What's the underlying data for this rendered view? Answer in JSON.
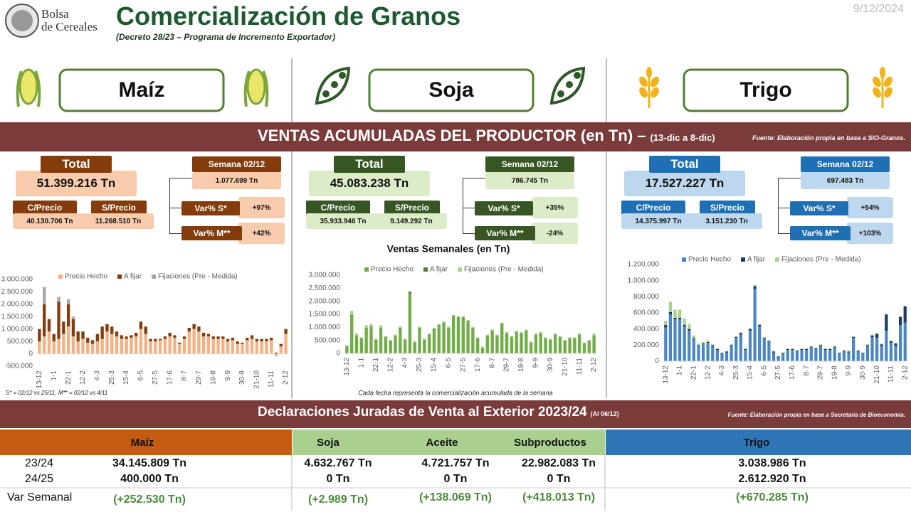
{
  "header": {
    "org_line1": "Bolsa",
    "org_line2": "de Cereales",
    "title": "Comercialización de Granos",
    "subtitle": "(Decreto 28/23 – Programa de Incremento Exportador)",
    "date": "9/12/2024"
  },
  "products": [
    "Maíz",
    "Soja",
    "Trigo"
  ],
  "ventas": {
    "title": "VENTAS ACUMULADAS DEL PRODUCTOR (en Tn) –",
    "period": "(13-dic a 8-dic)",
    "source": "Fuente: Elaboración propia en base a SIO-Granos.",
    "footnote": "S* = 02/12 vs 25/11, M** = 02/12 vs 4/11",
    "panels": [
      {
        "total_label": "Total",
        "total": "51.399.216 Tn",
        "cprecio_label": "C/Precio",
        "cprecio": "40.130.706 Tn",
        "sprecio_label": "S/Precio",
        "sprecio": "11.268.510 Tn",
        "semana_label": "Semana 02/12",
        "semana": "1.077.699 Tn",
        "var_s_label": "Var% S*",
        "var_s": "+97%",
        "var_m_label": "Var% M**",
        "var_m": "+42%"
      },
      {
        "total_label": "Total",
        "total": "45.083.238 Tn",
        "cprecio_label": "C/Precio",
        "cprecio": "35.933.946 Tn",
        "sprecio_label": "S/Precio",
        "sprecio": "9.149.292 Tn",
        "semana_label": "Semana 02/12",
        "semana": "786.745 Tn",
        "var_s_label": "Var% S*",
        "var_s": "+35%",
        "var_m_label": "Var% M**",
        "var_m": "-24%"
      },
      {
        "total_label": "Total",
        "total": "17.527.227 Tn",
        "cprecio_label": "C/Precio",
        "cprecio": "14.375.997 Tn",
        "sprecio_label": "S/Precio",
        "sprecio": "3.151.230 Tn",
        "semana_label": "Semana 02/12",
        "semana": "697.483 Tn",
        "var_s_label": "Var% S*",
        "var_s": "+54%",
        "var_m_label": "Var% M**",
        "var_m": "+103%"
      }
    ]
  },
  "chart_data": [
    {
      "type": "bar",
      "stacked": true,
      "categories": [
        "13-12",
        null,
        null,
        "1-1",
        null,
        null,
        "22-1",
        null,
        null,
        "12-2",
        null,
        null,
        "4-3",
        null,
        null,
        "25-3",
        null,
        null,
        "15-4",
        null,
        null,
        "6-5",
        null,
        null,
        "27-5",
        null,
        null,
        "17-6",
        null,
        null,
        "8-7",
        null,
        null,
        "29-7",
        null,
        null,
        "19-8",
        null,
        null,
        "9-9",
        null,
        null,
        "30-9",
        null,
        null,
        "21-10",
        null,
        null,
        "11-11",
        null,
        null,
        "2-12"
      ],
      "series": [
        {
          "name": "Precio Hecho",
          "color": "#f4b183",
          "values": [
            500000,
            700000,
            900000,
            500000,
            600000,
            800000,
            1100000,
            700000,
            500000,
            600000,
            450000,
            400000,
            500000,
            600000,
            900000,
            800000,
            700000,
            600000,
            600000,
            650000,
            700000,
            1000000,
            800000,
            500000,
            500000,
            550000,
            600000,
            700000,
            650000,
            400000,
            600000,
            900000,
            1000000,
            900000,
            700000,
            700000,
            600000,
            600000,
            600000,
            500000,
            550000,
            400000,
            400000,
            550000,
            600000,
            500000,
            500000,
            500000,
            550000,
            -100000,
            300000,
            800000
          ]
        },
        {
          "name": "A fijar",
          "color": "#843c0c",
          "values": [
            500000,
            1300000,
            500000,
            300000,
            1500000,
            500000,
            900000,
            700000,
            400000,
            300000,
            200000,
            150000,
            300000,
            500000,
            300000,
            300000,
            200000,
            150000,
            100000,
            100000,
            150000,
            300000,
            300000,
            100000,
            100000,
            50000,
            100000,
            150000,
            100000,
            50000,
            100000,
            150000,
            200000,
            200000,
            150000,
            100000,
            100000,
            100000,
            100000,
            100000,
            100000,
            100000,
            50000,
            100000,
            150000,
            100000,
            100000,
            100000,
            100000,
            50000,
            100000,
            200000
          ]
        },
        {
          "name": "Fijaciones (Pre - Medida)",
          "color": "#a6a6a6",
          "values": [
            0,
            700000,
            0,
            0,
            200000,
            0,
            200000,
            100000,
            0,
            0,
            0,
            0,
            0,
            0,
            0,
            0,
            0,
            0,
            0,
            0,
            0,
            0,
            0,
            0,
            0,
            0,
            0,
            0,
            0,
            0,
            0,
            0,
            0,
            0,
            0,
            0,
            0,
            0,
            0,
            0,
            0,
            0,
            0,
            0,
            0,
            0,
            0,
            0,
            0,
            0,
            0,
            0
          ]
        }
      ],
      "ylim": [
        -500000,
        3000000
      ],
      "yticks": [
        {
          "value": -500000,
          "label": "-500.000"
        },
        0,
        {
          "value": 500000,
          "label": "500.000"
        },
        {
          "value": 1000000,
          "label": "1.000.000"
        },
        {
          "value": 1500000,
          "label": "1.500.000"
        },
        {
          "value": 2000000,
          "label": "2.000.000"
        },
        {
          "value": 2500000,
          "label": "2.500.000"
        },
        {
          "value": 3000000,
          "label": "3.000.000"
        }
      ]
    },
    {
      "type": "bar",
      "stacked": true,
      "title": "Ventas Semanales (en Tn)",
      "note": "Cada fecha representa la comercialización acumulada de la semana",
      "categories": [
        "13-12",
        null,
        null,
        "1-1",
        null,
        null,
        "22-1",
        null,
        null,
        "12-2",
        null,
        null,
        "4-3",
        null,
        null,
        "25-3",
        null,
        null,
        "15-4",
        null,
        null,
        "6-5",
        null,
        null,
        "27-5",
        null,
        null,
        "17-6",
        null,
        null,
        "8-7",
        null,
        null,
        "29-7",
        null,
        null,
        "19-8",
        null,
        null,
        "9-9",
        null,
        null,
        "30-9",
        null,
        null,
        "21-10",
        null,
        null,
        "11-11",
        null,
        null,
        "2-12"
      ],
      "series": [
        {
          "name": "Precio Hecho",
          "color": "#70ad47",
          "values": [
            250000,
            1450000,
            650000,
            550000,
            950000,
            1000000,
            500000,
            950000,
            600000,
            450000,
            650000,
            950000,
            500000,
            2300000,
            400000,
            950000,
            500000,
            700000,
            900000,
            1050000,
            1150000,
            950000,
            1400000,
            1350000,
            1350000,
            1200000,
            950000,
            550000,
            200000,
            650000,
            850000,
            650000,
            1100000,
            750000,
            600000,
            800000,
            750000,
            850000,
            400000,
            700000,
            750000,
            550000,
            500000,
            700000,
            600000,
            450000,
            550000,
            550000,
            700000,
            350000,
            450000,
            650000
          ]
        },
        {
          "name": "A fijar",
          "color": "#548235",
          "values": [
            20000,
            30000,
            20000,
            20000,
            30000,
            30000,
            20000,
            30000,
            20000,
            20000,
            20000,
            30000,
            20000,
            50000,
            20000,
            30000,
            20000,
            20000,
            30000,
            30000,
            30000,
            30000,
            30000,
            30000,
            30000,
            30000,
            20000,
            20000,
            10000,
            20000,
            20000,
            20000,
            30000,
            20000,
            20000,
            20000,
            20000,
            20000,
            10000,
            20000,
            20000,
            20000,
            20000,
            20000,
            20000,
            20000,
            20000,
            20000,
            20000,
            20000,
            20000,
            20000
          ]
        },
        {
          "name": "Fijaciones (Pre - Medida)",
          "color": "#a9d18e",
          "values": [
            50000,
            150000,
            100000,
            50000,
            100000,
            100000,
            50000,
            100000,
            50000,
            50000,
            50000,
            50000,
            50000,
            50000,
            50000,
            50000,
            50000,
            50000,
            50000,
            50000,
            50000,
            50000,
            50000,
            50000,
            50000,
            50000,
            50000,
            50000,
            50000,
            50000,
            50000,
            50000,
            50000,
            50000,
            50000,
            50000,
            50000,
            50000,
            50000,
            50000,
            50000,
            50000,
            50000,
            50000,
            50000,
            50000,
            50000,
            50000,
            50000,
            50000,
            50000,
            100000
          ]
        }
      ],
      "ylim": [
        0,
        3000000
      ],
      "yticks": [
        0,
        {
          "value": 500000,
          "label": "500.000"
        },
        {
          "value": 1000000,
          "label": "1.000.000"
        },
        {
          "value": 1500000,
          "label": "1.500.000"
        },
        {
          "value": 2000000,
          "label": "2.000.000"
        },
        {
          "value": 2500000,
          "label": "2.500.000"
        },
        {
          "value": 3000000,
          "label": "3.000.000"
        }
      ]
    },
    {
      "type": "bar",
      "stacked": true,
      "categories": [
        "13-12",
        null,
        null,
        "1-1",
        null,
        null,
        "22-1",
        null,
        null,
        "12-2",
        null,
        null,
        "4-3",
        null,
        null,
        "25-3",
        null,
        null,
        "15-4",
        null,
        null,
        "6-5",
        null,
        null,
        "27-5",
        null,
        null,
        "17-6",
        null,
        null,
        "8-7",
        null,
        null,
        "29-7",
        null,
        null,
        "19-8",
        null,
        null,
        "9-9",
        null,
        null,
        "30-9",
        null,
        null,
        "21-10",
        null,
        null,
        "11-11",
        null,
        null,
        "2-12"
      ],
      "series": [
        {
          "name": "Precio Hecho",
          "color": "#4a86c5",
          "values": [
            420000,
            580000,
            520000,
            520000,
            430000,
            380000,
            280000,
            190000,
            210000,
            230000,
            190000,
            140000,
            90000,
            110000,
            190000,
            290000,
            330000,
            140000,
            380000,
            900000,
            430000,
            280000,
            240000,
            110000,
            50000,
            90000,
            140000,
            140000,
            120000,
            140000,
            140000,
            170000,
            150000,
            190000,
            140000,
            140000,
            170000,
            90000,
            120000,
            110000,
            290000,
            120000,
            90000,
            190000,
            300000,
            290000,
            190000,
            380000,
            230000,
            190000,
            450000,
            480000
          ]
        },
        {
          "name": "A fijar",
          "color": "#1f3864",
          "values": [
            30000,
            30000,
            20000,
            20000,
            20000,
            20000,
            10000,
            10000,
            10000,
            10000,
            10000,
            10000,
            10000,
            10000,
            10000,
            10000,
            20000,
            10000,
            20000,
            30000,
            20000,
            10000,
            10000,
            10000,
            10000,
            10000,
            10000,
            10000,
            10000,
            10000,
            10000,
            10000,
            10000,
            10000,
            10000,
            10000,
            10000,
            10000,
            10000,
            10000,
            10000,
            10000,
            10000,
            10000,
            20000,
            50000,
            20000,
            200000,
            20000,
            30000,
            100000,
            200000
          ]
        },
        {
          "name": "Fijaciones (Pre - Medida)",
          "color": "#a9d18e",
          "values": [
            50000,
            130000,
            100000,
            100000,
            80000,
            60000,
            30000,
            20000,
            20000,
            20000,
            10000,
            10000,
            10000,
            10000,
            10000,
            10000,
            10000,
            10000,
            10000,
            20000,
            10000,
            10000,
            10000,
            10000,
            0,
            10000,
            10000,
            10000,
            10000,
            10000,
            10000,
            10000,
            10000,
            10000,
            10000,
            10000,
            10000,
            10000,
            10000,
            10000,
            10000,
            10000,
            10000,
            10000,
            10000,
            10000,
            10000,
            10000,
            10000,
            10000,
            10000,
            10000
          ]
        }
      ],
      "ylim": [
        0,
        1200000
      ],
      "yticks": [
        0,
        {
          "value": 200000,
          "label": "200.000"
        },
        {
          "value": 400000,
          "label": "400.000"
        },
        {
          "value": 600000,
          "label": "600.000"
        },
        {
          "value": 800000,
          "label": "800.000"
        },
        {
          "value": 1000000,
          "label": "1.000.000"
        },
        {
          "value": 1200000,
          "label": "1.200.000"
        }
      ]
    }
  ],
  "declaraciones": {
    "title": "Declaraciones Juradas de Venta al Exterior 2023/24",
    "note": "(Al 06/12)",
    "source": "Fuente: Elaboración propia en base a Secretaria de Bioeconomía.",
    "columns": [
      "Maíz",
      "Soja",
      "Aceite",
      "Subproductos",
      "Trigo"
    ],
    "rows": [
      {
        "label": "23/24",
        "values": [
          "34.145.809 Tn",
          "4.632.767 Tn",
          "4.721.757 Tn",
          "22.982.083 Tn",
          "3.038.986 Tn"
        ]
      },
      {
        "label": "24/25",
        "values": [
          "400.000 Tn",
          "0 Tn",
          "0 Tn",
          "0 Tn",
          "2.612.920 Tn"
        ]
      },
      {
        "label": "Var Semanal",
        "values": [
          "(+252.530 Tn)",
          "(+2.989 Tn)",
          "(+138.069 Tn)",
          "(+418.013 Tn)",
          "(+670.285 Tn)"
        ]
      }
    ]
  }
}
